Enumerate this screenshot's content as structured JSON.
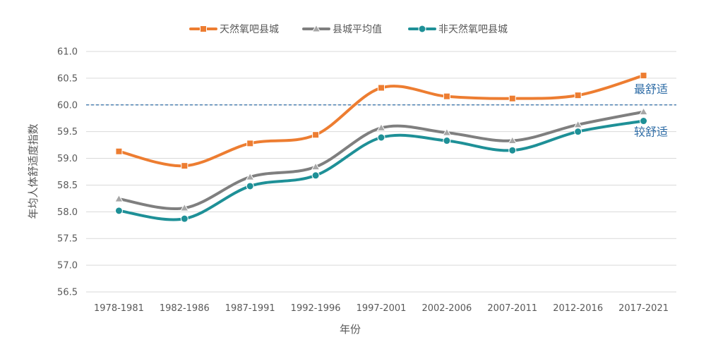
{
  "chart_data": {
    "type": "line",
    "xlabel": "年份",
    "ylabel": "年均人体舒适度指数",
    "ylim": [
      56.5,
      61.0
    ],
    "yticks": [
      56.5,
      57.0,
      57.5,
      58.0,
      58.5,
      59.0,
      59.5,
      60.0,
      60.5,
      61.0
    ],
    "ytick_labels": [
      "56.5",
      "57.0",
      "57.5",
      "58.0",
      "58.5",
      "59.0",
      "59.5",
      "60.0",
      "60.5",
      "61.0"
    ],
    "grid": true,
    "legend_position": "top",
    "categories": [
      "1978-1981",
      "1982-1986",
      "1987-1991",
      "1992-1996",
      "1997-2001",
      "2002-2006",
      "2007-2011",
      "2012-2016",
      "2017-2021"
    ],
    "series": [
      {
        "name": "天然氧吧县城",
        "color": "#ed7d31",
        "marker": "square",
        "values": [
          59.13,
          58.86,
          59.28,
          59.44,
          60.32,
          60.16,
          60.12,
          60.18,
          60.55
        ]
      },
      {
        "name": "县城平均值",
        "color": "#7f7f7f",
        "marker": "triangle",
        "values": [
          58.24,
          58.07,
          58.65,
          58.84,
          59.57,
          59.48,
          59.33,
          59.63,
          59.87
        ]
      },
      {
        "name": "非天然氧吧县城",
        "color": "#1e9097",
        "marker": "circle",
        "values": [
          58.02,
          57.87,
          58.48,
          58.68,
          59.39,
          59.33,
          59.15,
          59.5,
          59.7
        ]
      }
    ],
    "reference_line": {
      "value": 60.0,
      "color": "#2e6ca6",
      "style": "dashed"
    },
    "annotations": [
      {
        "text": "最舒适",
        "anchor_y": 60.3
      },
      {
        "text": "较舒适",
        "anchor_y": 59.5
      }
    ]
  }
}
